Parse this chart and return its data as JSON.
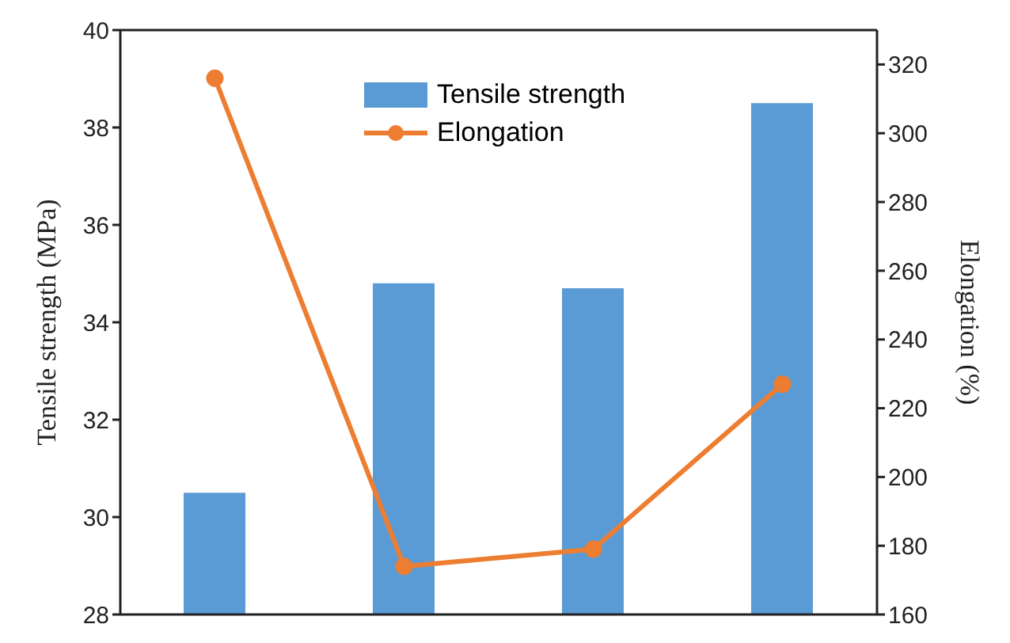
{
  "chart_data": {
    "type": "bar",
    "categories": [
      null,
      null,
      null,
      null
    ],
    "ylabel": "Tensile strength (MPa)",
    "y2label": "Elongation (%)",
    "ylim": [
      28,
      40
    ],
    "yticks": [
      28,
      30,
      32,
      34,
      36,
      38,
      40
    ],
    "y2lim": [
      160,
      330
    ],
    "y2ticks": [
      160,
      180,
      200,
      220,
      240,
      260,
      280,
      300,
      320
    ],
    "series": [
      {
        "name": "Tensile strength",
        "color": "#5b9bd5",
        "values": [
          30.5,
          34.8,
          34.7,
          38.5
        ]
      },
      {
        "name": "Elongation",
        "type": "line",
        "axis": "y2",
        "color": "#ed7d31",
        "values": [
          316,
          174,
          179,
          227
        ],
        "marker": "circle",
        "line_style": "solid"
      }
    ],
    "legend": "top",
    "grid": false
  }
}
